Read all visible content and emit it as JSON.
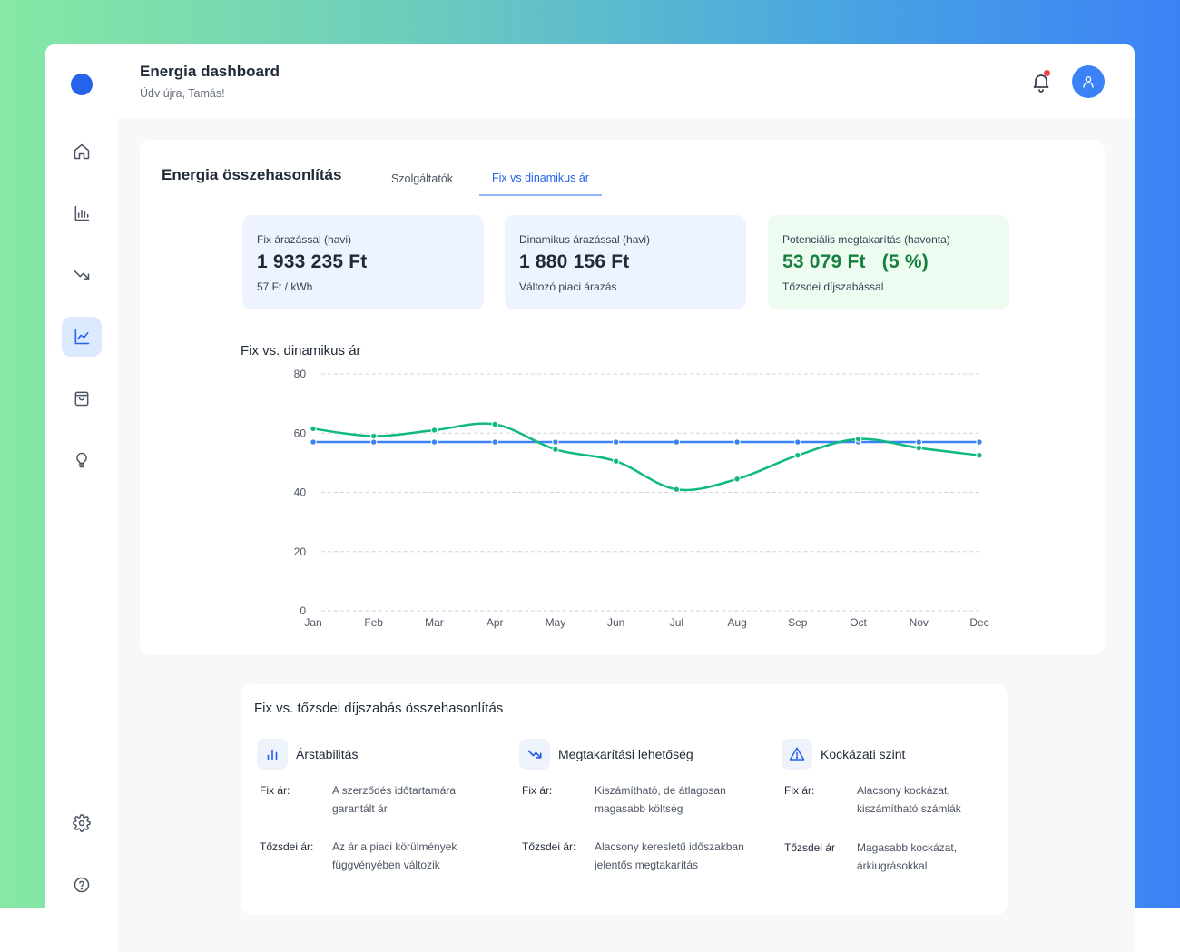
{
  "header": {
    "title": "Energia dashboard",
    "subtitle": "Üdv újra, Tamás!"
  },
  "sidebar": {
    "items": [
      {
        "icon": "home-icon"
      },
      {
        "icon": "bar-chart-icon"
      },
      {
        "icon": "trending-down-icon"
      },
      {
        "icon": "line-chart-icon",
        "active": true
      },
      {
        "icon": "shopping-bag-icon"
      },
      {
        "icon": "lightbulb-icon"
      }
    ],
    "bottom": [
      {
        "icon": "gear-icon"
      },
      {
        "icon": "help-icon"
      }
    ]
  },
  "comparison": {
    "title": "Energia összehasonlítás",
    "tabs": [
      {
        "label": "Szolgáltatók",
        "active": false
      },
      {
        "label": "Fix vs dinamikus ár",
        "active": true
      }
    ],
    "stats": [
      {
        "label": "Fix árazással (havi)",
        "value": "1 933 235 Ft",
        "sub": "57 Ft / kWh"
      },
      {
        "label": "Dinamikus árazással (havi)",
        "value": "1 880 156 Ft",
        "sub": "Változó piaci árazás"
      },
      {
        "label": "Potenciális megtakarítás (havonta)",
        "value": "53 079 Ft   (5 %)",
        "sub": "Tőzsdei díjszabással"
      }
    ]
  },
  "colors": {
    "accent": "#2563eb",
    "fix_line": "#3b82f6",
    "dynamic_line": "#10b981",
    "savings": "#15803d",
    "notification": "#ef4444"
  },
  "chart_data": {
    "type": "line",
    "title": "Fix vs. dinamikus ár",
    "categories": [
      "Jan",
      "Feb",
      "Mar",
      "Apr",
      "May",
      "Jun",
      "Jul",
      "Aug",
      "Sep",
      "Oct",
      "Nov",
      "Dec"
    ],
    "series": [
      {
        "values": [
          57,
          57,
          57,
          57,
          57,
          57,
          57,
          57,
          57,
          57,
          57,
          57
        ],
        "color": "#3b82f6"
      },
      {
        "values": [
          61.5,
          59,
          61,
          63,
          54.5,
          50.5,
          41,
          44.5,
          52.5,
          58,
          55,
          52.5
        ],
        "color": "#10b981"
      }
    ],
    "yticks": [
      0,
      20,
      40,
      60,
      80
    ],
    "ylim": [
      0,
      80
    ],
    "grid": true,
    "xlabel": "",
    "ylabel": ""
  },
  "details": {
    "title": "Fix vs. tőzsdei díjszabás összehasonlítás",
    "columns": [
      {
        "icon": "bar-chart-icon",
        "title": "Árstabilitás",
        "fix_label": "Fix ár:",
        "fix_text": "A szerződés időtartamára garantált ár",
        "market_label": "Tőzsdei ár:",
        "market_text": "Az ár a piaci körülmények függvényében változik"
      },
      {
        "icon": "trending-down-icon",
        "title": "Megtakarítási lehetőség",
        "fix_label": "Fix ár:",
        "fix_text": "Kiszámítható, de átlagosan magasabb költség",
        "market_label": "Tőzsdei ár:",
        "market_text": "Alacsony keresletű időszakban jelentős megtakarítás"
      },
      {
        "icon": "warning-icon",
        "title": "Kockázati szint",
        "fix_label": "Fix ár:",
        "fix_text": "Alacsony kockázat, kiszámítható számlák",
        "market_label": "Tőzsdei ár",
        "market_text": "Magasabb kockázat, árkiugrásokkal"
      }
    ]
  }
}
